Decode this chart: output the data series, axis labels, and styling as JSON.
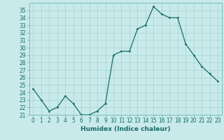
{
  "x": [
    0,
    1,
    2,
    3,
    4,
    5,
    6,
    7,
    8,
    9,
    10,
    11,
    12,
    13,
    14,
    15,
    16,
    17,
    18,
    19,
    20,
    21,
    22,
    23
  ],
  "y": [
    24.5,
    23.0,
    21.5,
    22.0,
    23.5,
    22.5,
    21.0,
    21.0,
    21.5,
    22.5,
    29.0,
    29.5,
    29.5,
    32.5,
    33.0,
    35.5,
    34.5,
    34.0,
    34.0,
    30.5,
    29.0,
    27.5,
    26.5,
    25.5
  ],
  "line_color": "#1a6b6b",
  "marker": ".",
  "marker_size": 3,
  "bg_color": "#c8eaea",
  "grid_color": "#a0cccc",
  "xlabel": "Humidex (Indice chaleur)",
  "ylim": [
    21,
    36
  ],
  "xlim": [
    -0.5,
    23.5
  ],
  "yticks": [
    21,
    22,
    23,
    24,
    25,
    26,
    27,
    28,
    29,
    30,
    31,
    32,
    33,
    34,
    35
  ],
  "xticks": [
    0,
    1,
    2,
    3,
    4,
    5,
    6,
    7,
    8,
    9,
    10,
    11,
    12,
    13,
    14,
    15,
    16,
    17,
    18,
    19,
    20,
    21,
    22,
    23
  ],
  "tick_fontsize": 5.5,
  "xlabel_fontsize": 6.5,
  "spine_color": "#5aabab",
  "tick_color": "#5aabab",
  "label_color": "#1a6b6b"
}
